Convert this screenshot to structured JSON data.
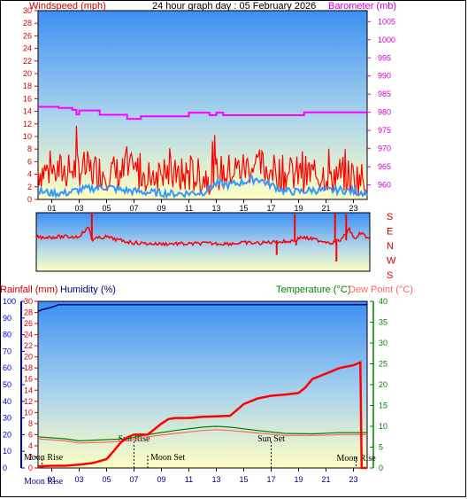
{
  "top_chart": {
    "title": "24 hour graph day : 05 February 2026",
    "left_axis_label": "Windspeed (mph)",
    "right_axis_label": "Barometer (mb)",
    "colors": {
      "wind": "#ff0000",
      "gust": "#3399ff",
      "baro": "#ff00ff",
      "left_axis": "#cc0000",
      "right_axis": "#cc00cc"
    }
  },
  "dir_chart": {
    "labels": [
      "S",
      "E",
      "N",
      "W",
      "S"
    ],
    "color": "#ff0000"
  },
  "bottom_chart": {
    "rain_label": "Rainfall (mm)",
    "humidity_label": "Humidity (%)",
    "temp_label": "Temperature (°C)",
    "dew_label": "Dew Point (°C)",
    "events": [
      {
        "label": "Moon Rise",
        "hour": 0.3
      },
      {
        "label": "Sun Rise",
        "hour": 7.0
      },
      {
        "label": "Moon Set",
        "hour": 8.0
      },
      {
        "label": "Sun Set",
        "hour": 17.0
      },
      {
        "label": "Moon Rise",
        "hour": 23.2
      }
    ],
    "bottom_moon_label": "Moon Rise",
    "colors": {
      "rain": "#ff0000",
      "humidity": "#000080",
      "temp": "#008000",
      "dew": "#ff6666"
    }
  },
  "chart_data": [
    {
      "type": "line",
      "title": "24 hour graph day : 05 February 2026",
      "xlabel": "",
      "ylabel": "Windspeed (mph)",
      "y2label": "Barometer (mb)",
      "x_ticks": [
        "01",
        "03",
        "05",
        "07",
        "09",
        "11",
        "13",
        "15",
        "17",
        "19",
        "21",
        "23"
      ],
      "x_range": [
        0,
        24
      ],
      "ylim": [
        0,
        30
      ],
      "y_ticks": [
        0,
        2,
        4,
        6,
        8,
        10,
        12,
        14,
        16,
        18,
        20,
        22,
        24,
        26,
        28,
        30
      ],
      "y2lim": [
        956,
        1008
      ],
      "y2_ticks": [
        960,
        965,
        970,
        975,
        980,
        985,
        990,
        995,
        1000,
        1005
      ],
      "series": [
        {
          "name": "Barometer (mb)",
          "axis": "right",
          "x": [
            0,
            0.8,
            1.5,
            2.5,
            2.8,
            3.0,
            4.5,
            6.5,
            7.5,
            10,
            11,
            12,
            12.5,
            13,
            13.5,
            15,
            16,
            18,
            19.4,
            21,
            24
          ],
          "y": [
            981.5,
            981.5,
            981.2,
            980.7,
            979.4,
            980.5,
            979.3,
            978.2,
            978.9,
            978.9,
            979.9,
            979.9,
            979.2,
            979.9,
            979.2,
            979.2,
            979.2,
            979.2,
            980.0,
            980.0,
            980.0
          ]
        },
        {
          "name": "Windspeed (mph)",
          "axis": "left",
          "x": [
            0,
            1,
            2,
            3,
            4,
            5,
            6,
            7,
            8,
            9,
            10,
            11,
            12,
            13,
            14,
            15,
            16,
            17,
            18,
            19,
            20,
            21,
            22,
            23,
            24
          ],
          "y": [
            4.5,
            4.5,
            4.5,
            5,
            4.5,
            4.5,
            4,
            4.5,
            4,
            4.5,
            3.5,
            4,
            3.5,
            4,
            4.5,
            5,
            5.5,
            4.5,
            4,
            4,
            4,
            4,
            4,
            3.5,
            3
          ]
        },
        {
          "name": "Gust",
          "axis": "left",
          "x": [
            0,
            1,
            2,
            3,
            4,
            5,
            6,
            7,
            8,
            9,
            10,
            11,
            12,
            13,
            14,
            15,
            16,
            17,
            18,
            19,
            20,
            21,
            22,
            23,
            24
          ],
          "y": [
            1.3,
            1.0,
            1.0,
            1.5,
            1.8,
            2.0,
            1.5,
            1.3,
            1.1,
            1.0,
            0.9,
            1.0,
            1.1,
            2.5,
            2.3,
            2.8,
            3.3,
            2.3,
            1.3,
            1.2,
            1.5,
            1.4,
            1.5,
            1.3,
            1.1
          ]
        }
      ]
    },
    {
      "type": "line",
      "title": "",
      "ylabel": "",
      "y_ticks": [
        "S",
        "E",
        "N",
        "W",
        "S"
      ],
      "ylim": [
        0,
        360
      ],
      "x_range": [
        0,
        24
      ],
      "series": [
        {
          "name": "",
          "x": [
            0,
            1,
            2,
            3,
            3.8,
            4,
            5,
            6,
            7,
            8,
            9,
            10,
            11,
            12,
            13,
            14,
            15,
            16,
            17,
            18,
            18.7,
            19,
            20,
            21,
            21.2,
            22,
            22.5,
            23,
            23.3,
            24
          ],
          "y": [
            150,
            150,
            148,
            148,
            90,
            165,
            148,
            170,
            185,
            190,
            192,
            190,
            193,
            188,
            190,
            190,
            185,
            188,
            180,
            178,
            170,
            150,
            165,
            180,
            185,
            165,
            100,
            170,
            120,
            165
          ]
        }
      ]
    },
    {
      "type": "line",
      "title": "",
      "ylabel": "Rainfall (mm) / Humidity (%)",
      "y2label": "Temperature (°C) / Dew Point (°C)",
      "x_ticks": [
        "01",
        "03",
        "05",
        "07",
        "09",
        "11",
        "13",
        "15",
        "17",
        "19",
        "21",
        "23"
      ],
      "x_range": [
        0,
        24
      ],
      "humidity_axis": {
        "ylim": [
          0,
          100
        ],
        "ticks": [
          0,
          10,
          20,
          30,
          40,
          50,
          60,
          70,
          80,
          90,
          100
        ]
      },
      "rain_axis": {
        "ylim": [
          0,
          30
        ],
        "ticks": [
          0,
          2,
          4,
          6,
          8,
          10,
          12,
          14,
          16,
          18,
          20,
          22,
          24,
          26,
          28,
          30
        ]
      },
      "temp_axis": {
        "ylim": [
          0,
          40
        ],
        "ticks": [
          0,
          5,
          10,
          15,
          20,
          25,
          30,
          35,
          40
        ]
      },
      "series": [
        {
          "name": "Humidity (%)",
          "axis": "humidity",
          "x": [
            0,
            0.3,
            0.8,
            1.2,
            1.5,
            2,
            24
          ],
          "y": [
            94,
            95,
            96,
            97,
            98,
            98,
            98
          ]
        },
        {
          "name": "Temperature (°C)",
          "axis": "temp",
          "x": [
            0,
            2,
            3,
            5,
            6.5,
            8,
            10,
            12,
            13,
            14,
            16,
            18,
            20,
            22,
            24
          ],
          "y": [
            7.5,
            7.0,
            6.5,
            6.8,
            7.0,
            8.0,
            9.0,
            9.8,
            10.0,
            9.8,
            9.0,
            8.3,
            8.2,
            8.5,
            8.5
          ]
        },
        {
          "name": "Dew Point (°C)",
          "axis": "temp",
          "x": [
            0,
            2,
            3,
            5,
            6.5,
            8,
            10,
            12,
            13,
            14,
            16,
            18,
            20,
            22,
            24
          ],
          "y": [
            7.0,
            6.5,
            6.0,
            6.2,
            6.5,
            7.5,
            8.3,
            9.0,
            9.2,
            9.0,
            8.4,
            7.8,
            7.8,
            8.0,
            8.0
          ]
        },
        {
          "name": "Rainfall (mm)",
          "axis": "rain",
          "x": [
            0,
            1,
            2,
            3,
            4,
            5,
            5.5,
            6,
            6.5,
            7,
            7.5,
            8,
            9,
            9.5,
            10,
            11,
            12,
            13,
            14,
            14.3,
            15,
            15.5,
            16,
            17,
            18,
            19,
            19.5,
            20,
            21,
            22,
            23,
            23.5,
            23.6,
            24
          ],
          "y": [
            0.3,
            0.4,
            0.4,
            0.6,
            0.9,
            1.6,
            3.0,
            4.5,
            5.5,
            6.0,
            6.0,
            6.0,
            8.0,
            8.8,
            9.0,
            9.0,
            9.2,
            9.3,
            9.4,
            10.0,
            11.5,
            12.0,
            12.5,
            13.0,
            13.2,
            13.5,
            14.5,
            16.0,
            17.0,
            18.0,
            18.5,
            19.0,
            0,
            0
          ]
        }
      ]
    }
  ]
}
